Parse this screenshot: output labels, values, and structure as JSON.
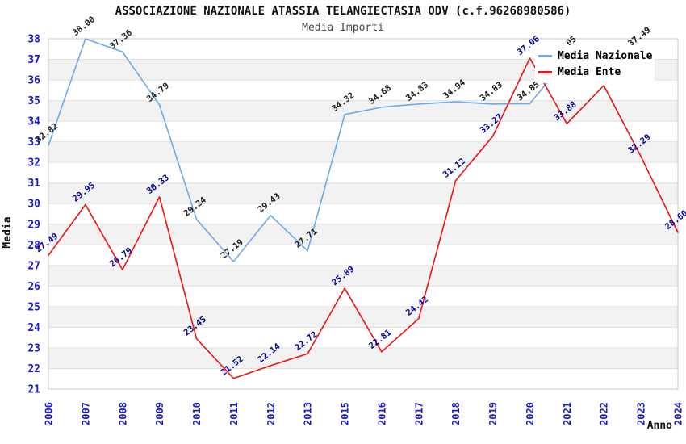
{
  "title": "ASSOCIAZIONE NAZIONALE ATASSIA TELANGIECTASIA ODV (c.f.96268980586)",
  "subtitle": "Media Importi",
  "axes": {
    "y_label": "Media",
    "x_label": "Anno",
    "y_ticks": [
      38,
      37,
      36,
      35,
      34,
      33,
      32,
      31,
      30,
      29,
      28,
      27,
      26,
      25,
      24,
      23,
      22,
      21
    ],
    "tick_color": "#1A1ACC"
  },
  "legend": {
    "items": [
      {
        "label": "Media Nazionale",
        "color": "#6EA9E4"
      },
      {
        "label": "Media Ente",
        "color": "#EE1111"
      }
    ]
  },
  "colors": {
    "band": "#F2F2F2",
    "grid": "#E0E0E0",
    "border": "#C8C8C8",
    "axis_title": "#111111"
  },
  "chart_data": {
    "type": "line",
    "title": "ASSOCIAZIONE NAZIONALE ATASSIA TELANGIECTASIA ODV (c.f.96268980586)",
    "subtitle": "Media Importi",
    "xlabel": "Anno",
    "ylabel": "Media",
    "ylim": [
      21,
      38
    ],
    "grid": "horizontal-bands",
    "legend_position": "top-right",
    "categories": [
      "2006",
      "2007",
      "2008",
      "2009",
      "2010",
      "2011",
      "2012",
      "2013",
      "2015",
      "2016",
      "2017",
      "2018",
      "2019",
      "2020",
      "2021",
      "2022",
      "2023",
      "2024"
    ],
    "series": [
      {
        "name": "Media Nazionale",
        "color": "#6EA9E4",
        "label_color": "#1A1A1A",
        "values": [
          32.82,
          38.0,
          37.36,
          34.79,
          29.24,
          27.19,
          29.43,
          27.71,
          34.32,
          34.68,
          34.83,
          34.94,
          34.83,
          34.85,
          37.05,
          37.27,
          37.49,
          null
        ],
        "labels": [
          "32.82",
          "38.00",
          "37.36",
          "34.79",
          "29.24",
          "27.19",
          "29.43",
          "27.71",
          "34.32",
          "34.68",
          "34.83",
          "34.94",
          "34.83",
          "34.85",
          "37.05",
          null,
          "37.49",
          null
        ]
      },
      {
        "name": "Media Ente",
        "color": "#EE1111",
        "label_color": "#000099",
        "values": [
          27.49,
          29.95,
          26.79,
          30.33,
          23.45,
          21.52,
          22.14,
          22.72,
          25.89,
          22.81,
          24.42,
          31.12,
          33.27,
          37.06,
          33.88,
          35.73,
          32.29,
          28.6
        ],
        "labels": [
          "27.49",
          "29.95",
          "26.79",
          "30.33",
          "23.45",
          "21.52",
          "22.14",
          "22.72",
          "25.89",
          "22.81",
          "24.42",
          "31.12",
          "33.27",
          "37.06",
          "33.88",
          null,
          "32.29",
          "28.60"
        ]
      }
    ]
  }
}
